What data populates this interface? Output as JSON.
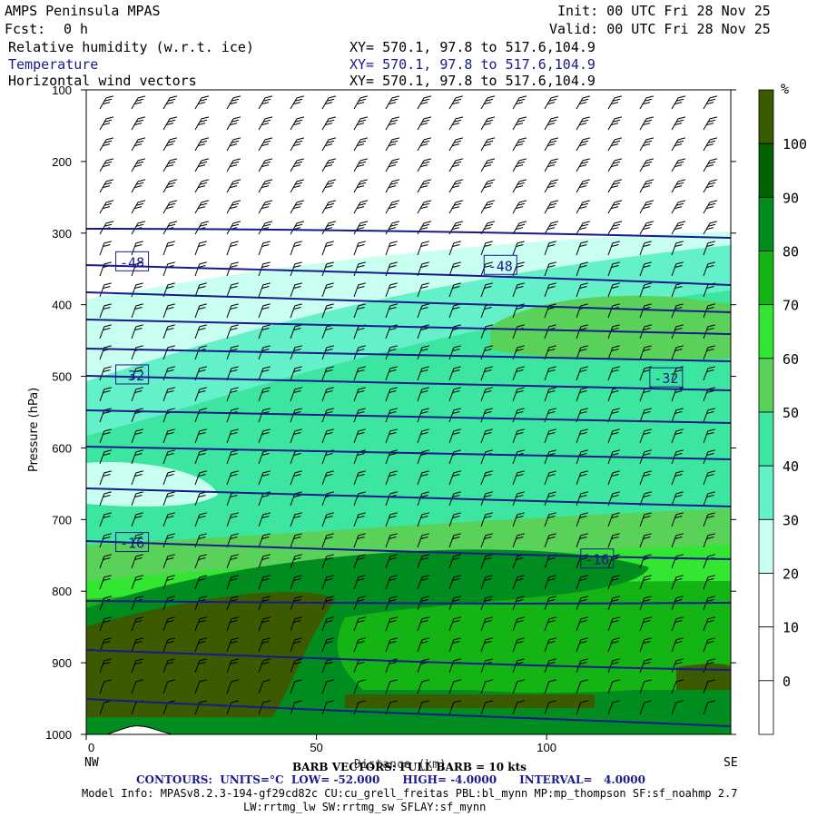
{
  "header": {
    "title": "AMPS Peninsula MPAS",
    "fcst_label": "Fcst:",
    "fcst_value": "0 h",
    "init": "Init: 00 UTC Fri 28 Nov 25",
    "valid": "Valid: 00 UTC Fri 28 Nov 25",
    "field1": "Relative humidity (w.r.t. ice)",
    "field2": "Temperature",
    "field3": "Horizontal wind vectors",
    "xy1": "XY= 570.1, 97.8 to 517.6,104.9",
    "xy2": "XY= 570.1, 97.8 to 517.6,104.9",
    "xy3": "XY= 570.1, 97.8 to 517.6,104.9"
  },
  "axes": {
    "ylabel": "Pressure (hPa)",
    "xlabel": "Distance (km)",
    "left_end": "NW",
    "right_end": "SE"
  },
  "colorbar": {
    "unit": "%",
    "labels": [
      "100",
      "90",
      "80",
      "70",
      "60",
      "50",
      "40",
      "30",
      "20",
      "10",
      "0"
    ],
    "colors": [
      "#3c5a00",
      "#006400",
      "#008c1e",
      "#14b414",
      "#32e632",
      "#5ad25a",
      "#3ce6a0",
      "#64f0c8",
      "#c8fff0",
      "#ffffff",
      "#ffffff",
      "#ffffff"
    ]
  },
  "footer": {
    "barb": "BARB VECTORS: FULL BARB = 10 kts",
    "contours": "CONTOURS:  UNITS=°C  LOW= -52.000      HIGH= -4.0000      INTERVAL=   4.0000",
    "model1": "Model Info: MPASv8.2.3-194-gf29cd82c CU:cu_grell_freitas PBL:bl_mynn MP:mp_thompson SF:sf_noahmp 2.7",
    "model2": "LW:rrtmg_lw SW:rrtmg_sw SFLAY:sf_mynn"
  },
  "chart_data": {
    "type": "heatmap",
    "description_fields": [
      "Relative humidity (w.r.t. ice)",
      "Temperature",
      "Horizontal wind vectors"
    ],
    "x": {
      "ticks": [
        0,
        50,
        100
      ],
      "range": [
        0,
        140
      ]
    },
    "y": {
      "ticks": [
        100,
        200,
        300,
        400,
        500,
        600,
        700,
        800,
        900,
        1000
      ],
      "range": [
        1000,
        100
      ],
      "inverted": true
    },
    "rh_colorbar_ticks": [
      0,
      10,
      20,
      30,
      40,
      50,
      60,
      70,
      80,
      90,
      100
    ],
    "temperature_contours": {
      "units": "°C",
      "low": -52.0,
      "high": -4.0,
      "interval": 4.0,
      "labels": [
        {
          "value": "-48",
          "x": 8,
          "p": 340
        },
        {
          "value": "-48",
          "x": 88,
          "p": 345
        },
        {
          "value": "-32",
          "x": 8,
          "p": 498
        },
        {
          "value": "-32",
          "x": 124,
          "p": 502
        },
        {
          "value": "-16",
          "x": 8,
          "p": 732
        },
        {
          "value": "-16",
          "x": 109,
          "p": 755
        }
      ]
    }
  }
}
